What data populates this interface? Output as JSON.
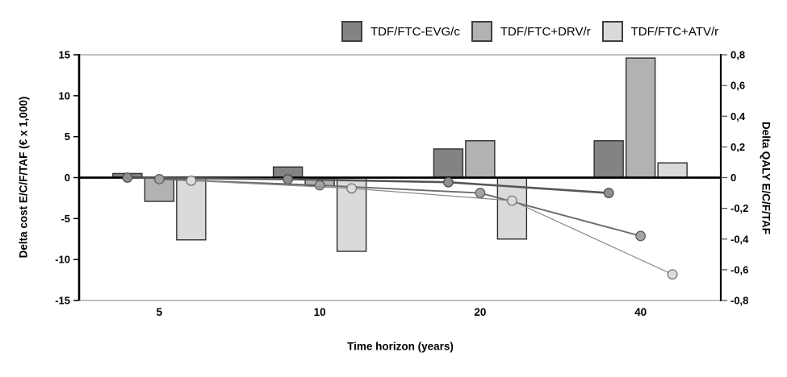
{
  "legend": {
    "items": [
      {
        "label": "TDF/FTC-EVG/c",
        "color": "#838383",
        "border": "#3f3f3f"
      },
      {
        "label": "TDF/FTC+DRV/r",
        "color": "#b2b2b2",
        "border": "#3f3f3f"
      },
      {
        "label": "TDF/FTC+ATV/r",
        "color": "#dadada",
        "border": "#3f3f3f"
      }
    ]
  },
  "chart_data": {
    "type": "combo-bar-line",
    "categories": [
      "5",
      "10",
      "20",
      "40"
    ],
    "xlabel": "Time horizon (years)",
    "grid": false,
    "legend_position": "top",
    "left_axis": {
      "label": "Delta cost E/C/F/TAF (€ x 1,000)",
      "min": -15,
      "max": 15,
      "tick_values": [
        15,
        10,
        5,
        0,
        -5,
        -10,
        -15
      ],
      "tick_labels": [
        "15",
        "10",
        "5",
        "0",
        "-5",
        "-10",
        "-15"
      ]
    },
    "right_axis": {
      "label": "Delta QALY E/C/F/TAF",
      "min": -0.8,
      "max": 0.8,
      "tick_values": [
        0.8,
        0.6,
        0.4,
        0.2,
        0,
        -0.2,
        -0.4,
        -0.6,
        -0.8
      ],
      "tick_labels": [
        "0,8",
        "0,6",
        "0,4",
        "0,2",
        "0",
        "-0,2",
        "-0,4",
        "-0,6",
        "-0,8"
      ]
    },
    "bar_series": [
      {
        "name": "TDF/FTC-EVG/c",
        "axis": "left",
        "unit": "€ x 1,000",
        "values": [
          0.5,
          1.3,
          3.5,
          4.5
        ],
        "fill": "#838383",
        "stroke": "#2e2e2e"
      },
      {
        "name": "TDF/FTC+DRV/r",
        "axis": "left",
        "unit": "€ x 1,000",
        "values": [
          -2.9,
          -1.0,
          4.5,
          14.6
        ],
        "fill": "#b2b2b2",
        "stroke": "#2e2e2e"
      },
      {
        "name": "TDF/FTC+ATV/r",
        "axis": "left",
        "unit": "€ x 1,000",
        "values": [
          -7.6,
          -9.0,
          -7.5,
          1.8
        ],
        "fill": "#dadada",
        "stroke": "#2e2e2e"
      }
    ],
    "line_series": [
      {
        "name": "TDF/FTC-EVG/c",
        "axis": "right",
        "unit": "QALY",
        "values": [
          0.0,
          -0.01,
          -0.03,
          -0.1
        ],
        "stroke": "#565656",
        "stroke_width": 2.6,
        "marker": "circle",
        "marker_fill": "#8f8f8f",
        "marker_stroke": "#4a4a4a"
      },
      {
        "name": "TDF/FTC+DRV/r",
        "axis": "right",
        "unit": "QALY",
        "values": [
          -0.01,
          -0.05,
          -0.1,
          -0.38
        ],
        "stroke": "#6b6b6b",
        "stroke_width": 1.9,
        "marker": "circle",
        "marker_fill": "#a3a3a3",
        "marker_stroke": "#585858"
      },
      {
        "name": "TDF/FTC+ATV/r",
        "axis": "right",
        "unit": "QALY",
        "values": [
          -0.02,
          -0.07,
          -0.15,
          -0.63
        ],
        "stroke": "#8a8a8a",
        "stroke_width": 1.2,
        "marker": "circle",
        "marker_fill": "#dcdcdc",
        "marker_stroke": "#6f6f6f"
      }
    ],
    "colors": {
      "axis_line": "#000000",
      "frame_line": "#9a9a9a",
      "zero_line": "#000000",
      "background": "#ffffff"
    }
  }
}
